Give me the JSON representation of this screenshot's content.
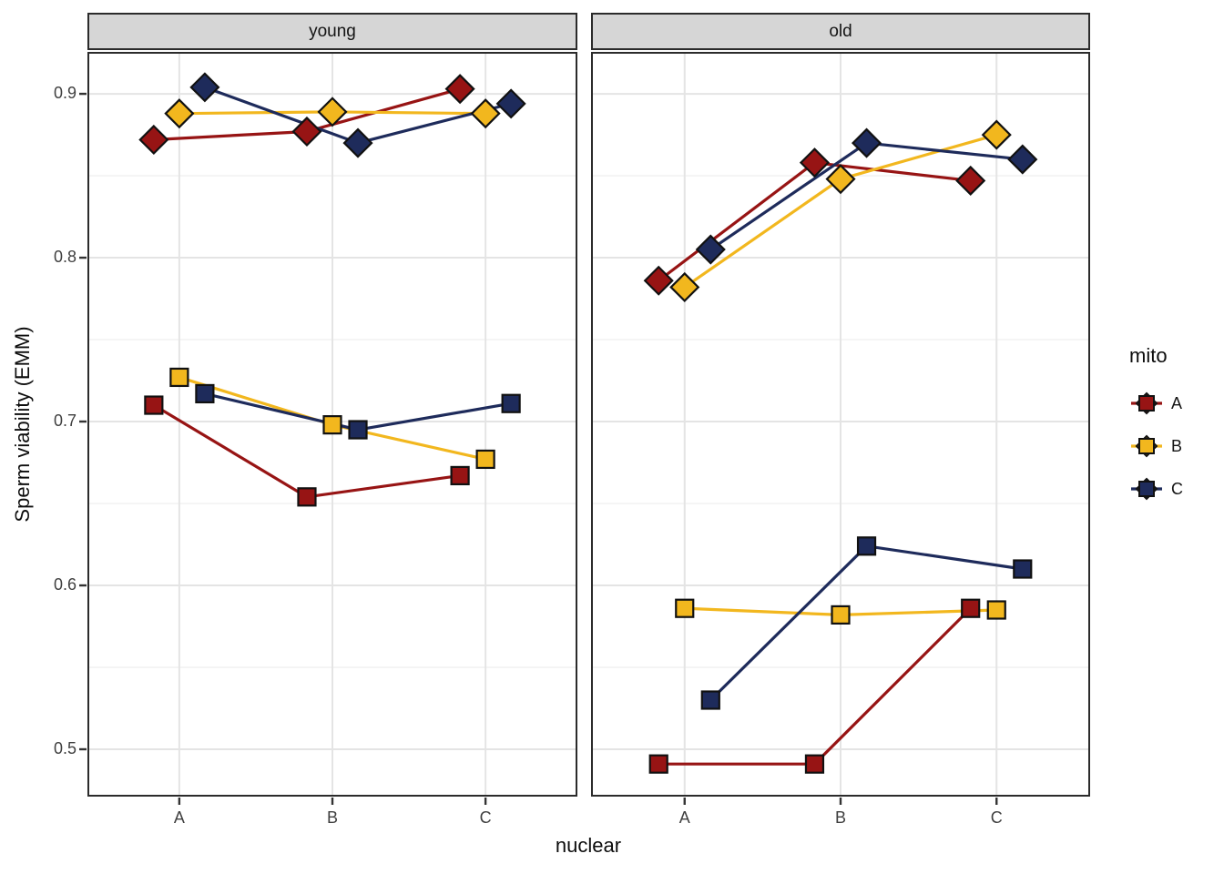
{
  "chart_data": {
    "type": "line",
    "title": "",
    "xlabel": "nuclear",
    "ylabel": "Sperm viability (EMM)",
    "x_categories": [
      "A",
      "B",
      "C"
    ],
    "y_tick_labels": [
      "0.9",
      "0.8",
      "0.7",
      "0.6",
      "0.5"
    ],
    "y_tick_values": [
      0.9,
      0.8,
      0.7,
      0.6,
      0.5
    ],
    "y_minor_ticks": [
      0.85,
      0.75,
      0.65,
      0.55
    ],
    "ylim": [
      0.4711,
      0.9256
    ],
    "grid": "major horizontal + minor horizontal + major vertical at categories",
    "legend": {
      "title": "mito",
      "position": "right",
      "entries": [
        {
          "label": "A",
          "color": "#971414"
        },
        {
          "label": "B",
          "color": "#F2B71E"
        },
        {
          "label": "C",
          "color": "#1E2B5B"
        }
      ]
    },
    "facets": [
      {
        "label": "young",
        "series": [
          {
            "mito": "A",
            "shape": "diamond",
            "color": "#971414",
            "values": [
              0.872,
              0.877,
              0.903
            ]
          },
          {
            "mito": "B",
            "shape": "diamond",
            "color": "#F2B71E",
            "values": [
              0.888,
              0.889,
              0.888
            ]
          },
          {
            "mito": "C",
            "shape": "diamond",
            "color": "#1E2B5B",
            "values": [
              0.904,
              0.87,
              0.894
            ]
          },
          {
            "mito": "A",
            "shape": "square",
            "color": "#971414",
            "values": [
              0.71,
              0.654,
              0.667
            ]
          },
          {
            "mito": "B",
            "shape": "square",
            "color": "#F2B71E",
            "values": [
              0.727,
              0.698,
              0.677
            ]
          },
          {
            "mito": "C",
            "shape": "square",
            "color": "#1E2B5B",
            "values": [
              0.717,
              0.695,
              0.711
            ]
          }
        ]
      },
      {
        "label": "old",
        "series": [
          {
            "mito": "A",
            "shape": "diamond",
            "color": "#971414",
            "values": [
              0.786,
              0.858,
              0.847
            ]
          },
          {
            "mito": "B",
            "shape": "diamond",
            "color": "#F2B71E",
            "values": [
              0.782,
              0.848,
              0.875
            ]
          },
          {
            "mito": "C",
            "shape": "diamond",
            "color": "#1E2B5B",
            "values": [
              0.805,
              0.87,
              0.86
            ]
          },
          {
            "mito": "A",
            "shape": "square",
            "color": "#971414",
            "values": [
              0.491,
              0.491,
              0.586
            ]
          },
          {
            "mito": "B",
            "shape": "square",
            "color": "#F2B71E",
            "values": [
              0.586,
              0.582,
              0.585
            ]
          },
          {
            "mito": "C",
            "shape": "square",
            "color": "#1E2B5B",
            "values": [
              0.53,
              0.624,
              0.61
            ]
          }
        ]
      }
    ]
  }
}
